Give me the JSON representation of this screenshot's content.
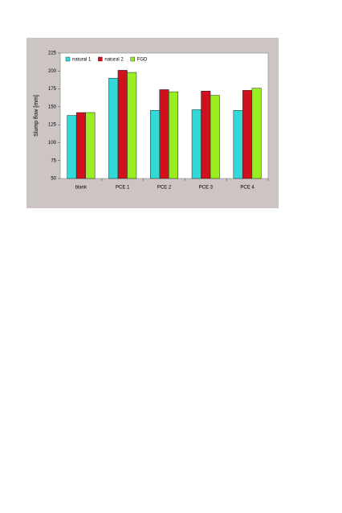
{
  "chart_data": {
    "type": "bar",
    "y_label": "Slump flow [mm]",
    "categories": [
      "blank",
      "PCE 1",
      "PCE 2",
      "PCE 3",
      "PCE 4"
    ],
    "series": [
      {
        "name": "natural 1",
        "color": "#33d9d6",
        "values": [
          138,
          190,
          145,
          146,
          145
        ]
      },
      {
        "name": "natural 2",
        "color": "#d0101c",
        "values": [
          142,
          201,
          174,
          172,
          173
        ]
      },
      {
        "name": "FGD",
        "color": "#99ee22",
        "values": [
          142,
          198,
          171,
          166,
          176
        ]
      }
    ],
    "ylim": [
      50,
      225
    ],
    "yticks": [
      50,
      75,
      100,
      125,
      150,
      175,
      200,
      225
    ],
    "legend": "upper left"
  }
}
